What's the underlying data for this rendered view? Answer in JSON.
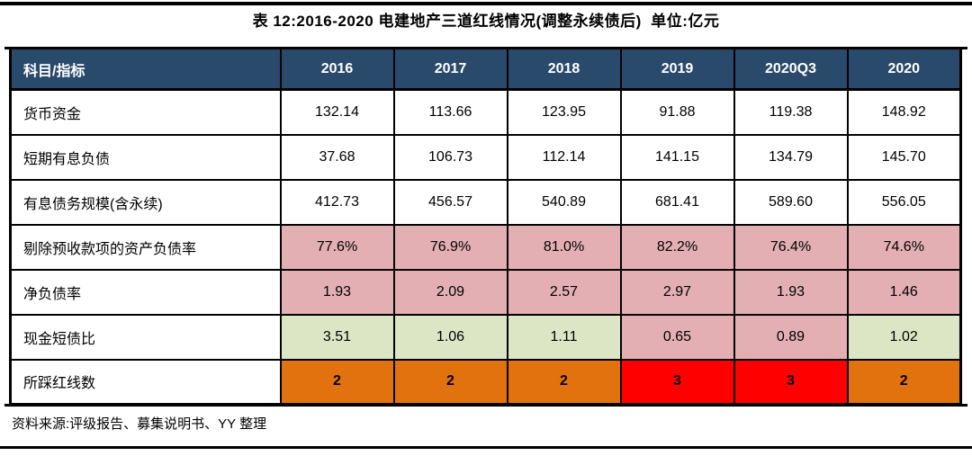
{
  "page": {
    "title": "表 12:2016-2020 电建地产三道红线情况(调整永续债后)  单位:亿元",
    "source_note": "资料来源:评级报告、募集说明书、YY 整理"
  },
  "colors": {
    "header_bg": "#2A4A6B",
    "header_text": "#FFFFFF",
    "pink": "#E3AFB2",
    "green": "#DCE5C4",
    "orange": "#E2720E",
    "red": "#FF0000",
    "border": "#000000",
    "page_bg": "#FFFFFF"
  },
  "chart_data": {
    "type": "table",
    "title": "表 12:2016-2020 电建地产三道红线情况(调整永续债后)  单位:亿元",
    "columns": [
      "科目/指标",
      "2016",
      "2017",
      "2018",
      "2019",
      "2020Q3",
      "2020"
    ],
    "rows": [
      {
        "label": "货币资金",
        "values": [
          "132.14",
          "113.66",
          "123.95",
          "91.88",
          "119.38",
          "148.92"
        ],
        "fills": [
          "none",
          "none",
          "none",
          "none",
          "none",
          "none"
        ],
        "bold": false
      },
      {
        "label": "短期有息负债",
        "values": [
          "37.68",
          "106.73",
          "112.14",
          "141.15",
          "134.79",
          "145.70"
        ],
        "fills": [
          "none",
          "none",
          "none",
          "none",
          "none",
          "none"
        ],
        "bold": false
      },
      {
        "label": "有息债务规模(含永续)",
        "values": [
          "412.73",
          "456.57",
          "540.89",
          "681.41",
          "589.60",
          "556.05"
        ],
        "fills": [
          "none",
          "none",
          "none",
          "none",
          "none",
          "none"
        ],
        "bold": false
      },
      {
        "label": "剔除预收款项的资产负债率",
        "values": [
          "77.6%",
          "76.9%",
          "81.0%",
          "82.2%",
          "76.4%",
          "74.6%"
        ],
        "fills": [
          "pink",
          "pink",
          "pink",
          "pink",
          "pink",
          "pink"
        ],
        "bold": false
      },
      {
        "label": "净负债率",
        "values": [
          "1.93",
          "2.09",
          "2.57",
          "2.97",
          "1.93",
          "1.46"
        ],
        "fills": [
          "pink",
          "pink",
          "pink",
          "pink",
          "pink",
          "pink"
        ],
        "bold": false
      },
      {
        "label": "现金短债比",
        "values": [
          "3.51",
          "1.06",
          "1.11",
          "0.65",
          "0.89",
          "1.02"
        ],
        "fills": [
          "green",
          "green",
          "green",
          "pink",
          "pink",
          "green"
        ],
        "bold": false
      },
      {
        "label": "所踩红线数",
        "values": [
          "2",
          "2",
          "2",
          "3",
          "3",
          "2"
        ],
        "fills": [
          "orange",
          "orange",
          "orange",
          "red",
          "red",
          "orange"
        ],
        "bold": true
      }
    ]
  }
}
